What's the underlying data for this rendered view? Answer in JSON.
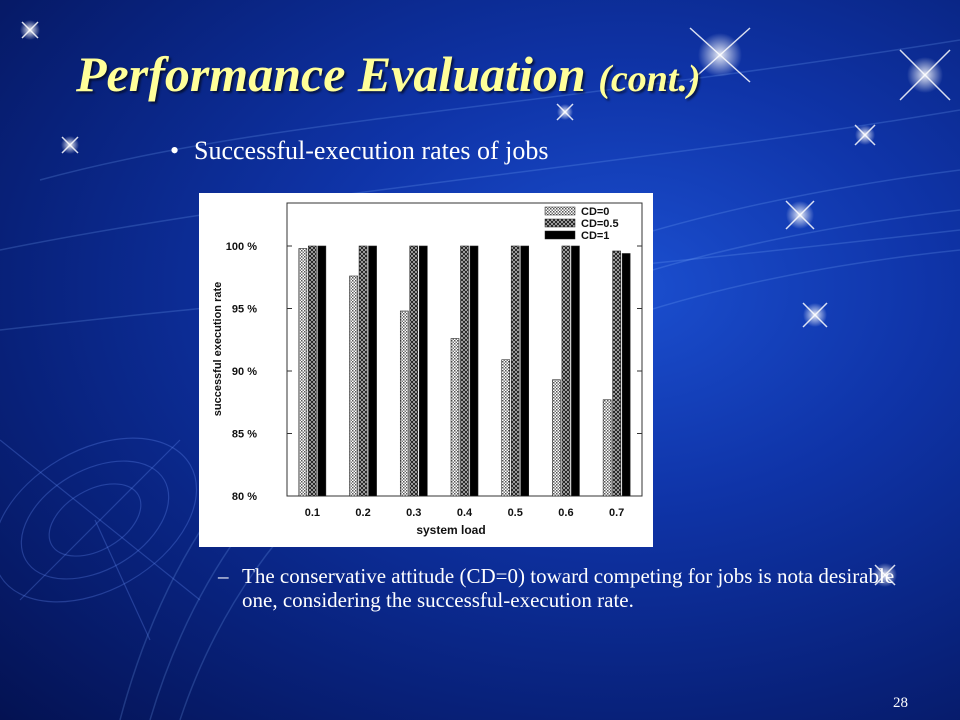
{
  "slide": {
    "title": "Performance Evaluation",
    "title_suffix": "(cont.)",
    "bullet": "Successful-execution rates of jobs",
    "subpoint_dash": "–",
    "subpoint": "The conservative attitude (CD=0) toward competing for jobs is nota desirable one, considering the successful-execution rate.",
    "page_number": "28"
  },
  "colors": {
    "title": "#ffff99",
    "text": "#ffffff",
    "background": "#0f34a8"
  },
  "chart_data": {
    "type": "bar",
    "categories": [
      "0.1",
      "0.2",
      "0.3",
      "0.4",
      "0.5",
      "0.6",
      "0.7"
    ],
    "series": [
      {
        "name": "CD=0",
        "values": [
          99.8,
          97.6,
          94.8,
          92.6,
          90.9,
          89.3,
          87.7
        ],
        "pattern": "dotted"
      },
      {
        "name": "CD=0.5",
        "values": [
          100,
          100,
          100,
          100,
          100,
          100,
          99.6
        ],
        "pattern": "checkered"
      },
      {
        "name": "CD=1",
        "values": [
          100,
          100,
          100,
          100,
          100,
          100,
          99.4
        ],
        "pattern": "solid"
      }
    ],
    "xlabel": "system load",
    "ylabel": "successful execution rate",
    "ylim": [
      80,
      100
    ],
    "yticks": [
      80,
      85,
      90,
      95,
      100
    ],
    "ytick_labels": [
      "80 %",
      "85 %",
      "90 %",
      "95 %",
      "100 %"
    ],
    "legend_position": "top-right",
    "grid": false
  }
}
